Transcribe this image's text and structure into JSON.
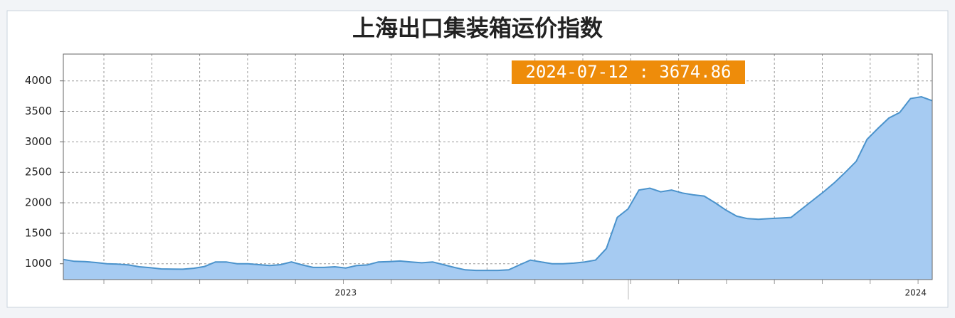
{
  "chart_data": {
    "type": "area",
    "title": "上海出口集装箱运价指数",
    "annotation": "2024-07-12 : 3674.86",
    "categories": [
      null,
      null,
      null,
      null,
      null,
      null,
      null,
      null,
      null,
      null,
      null,
      null,
      null,
      null,
      null,
      null,
      null,
      null,
      null,
      null,
      null,
      null,
      null,
      null,
      null,
      null,
      "2023",
      null,
      null,
      null,
      null,
      null,
      null,
      null,
      null,
      null,
      null,
      null,
      null,
      null,
      null,
      null,
      null,
      null,
      null,
      null,
      null,
      null,
      null,
      null,
      null,
      null,
      null,
      null,
      null,
      null,
      null,
      null,
      null,
      null,
      null,
      null,
      null,
      null,
      null,
      null,
      null,
      null,
      null,
      null,
      null,
      null,
      null,
      null,
      null,
      null,
      null,
      null,
      null,
      "2024",
      null
    ],
    "series": [
      {
        "color": "#a6cbf2",
        "line_color": "#4b93cc",
        "values": [
          1070,
          1040,
          1035,
          1020,
          1000,
          995,
          980,
          950,
          935,
          915,
          912,
          910,
          925,
          955,
          1030,
          1030,
          1000,
          1000,
          985,
          970,
          985,
          1030,
          980,
          940,
          940,
          950,
          930,
          970,
          980,
          1030,
          1035,
          1045,
          1030,
          1015,
          1030,
          985,
          940,
          900,
          890,
          890,
          890,
          900,
          980,
          1060,
          1030,
          1000,
          1000,
          1010,
          1030,
          1060,
          1250,
          1760,
          1900,
          2210,
          2240,
          2180,
          2210,
          2160,
          2130,
          2110,
          2000,
          1880,
          1780,
          1740,
          1730,
          1740,
          1750,
          1760,
          1900,
          2040,
          2180,
          2330,
          2500,
          2680,
          3040,
          3220,
          3390,
          3480,
          3710,
          3740,
          3674.86
        ]
      }
    ],
    "ylim": [
      740,
      4440
    ],
    "yticks": [
      1000,
      1500,
      2000,
      2500,
      3000,
      3500,
      4000
    ],
    "grid": true
  }
}
